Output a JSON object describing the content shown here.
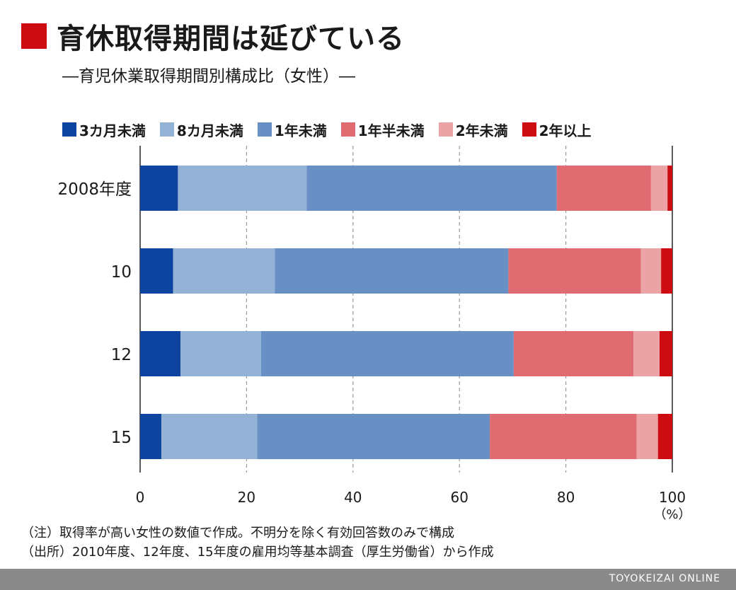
{
  "title": "育休取得期間は延びている",
  "subtitle": "―育児休業取得期間別構成比（女性）―",
  "notes": [
    "（注）取得率が高い女性の数値で作成。不明分を除く有効回答数のみで構成",
    "（出所）2010年度、12年度、15年度の雇用均等基本調査（厚生労働省）から作成"
  ],
  "footer": {
    "brand": "TOYOKEIZAI ONLINE"
  },
  "colors": {
    "accent": "#cc0c10",
    "footer_bar": "#8a8a8a",
    "axis": "#5a5a5a",
    "grid": "#9a9a9a"
  },
  "chart_data": {
    "type": "bar",
    "orientation": "horizontal",
    "stacked": true,
    "categories": [
      "2008年度",
      "10",
      "12",
      "15"
    ],
    "series": [
      {
        "name": "3カ月未満",
        "color": "#0d44a0",
        "values": [
          7.1,
          6.2,
          7.6,
          4.0
        ]
      },
      {
        "name": "8カ月未満",
        "color": "#93b2d6",
        "values": [
          24.2,
          19.1,
          15.1,
          18.0
        ]
      },
      {
        "name": "1年未満",
        "color": "#6890c4",
        "values": [
          47.0,
          43.9,
          47.5,
          43.7
        ]
      },
      {
        "name": "1年半未満",
        "color": "#e06c72",
        "values": [
          17.7,
          24.9,
          22.5,
          27.6
        ]
      },
      {
        "name": "2年未満",
        "color": "#eba3a6",
        "values": [
          3.1,
          3.8,
          4.9,
          4.0
        ]
      },
      {
        "name": "2年以上",
        "color": "#cc0c10",
        "values": [
          0.9,
          2.1,
          2.4,
          2.7
        ]
      }
    ],
    "x_ticks": [
      "0",
      "20",
      "40",
      "60",
      "80",
      "100"
    ],
    "x_unit": "（%）",
    "xlim": [
      0,
      100
    ],
    "grid": "vertical dashed",
    "legend": "top"
  }
}
